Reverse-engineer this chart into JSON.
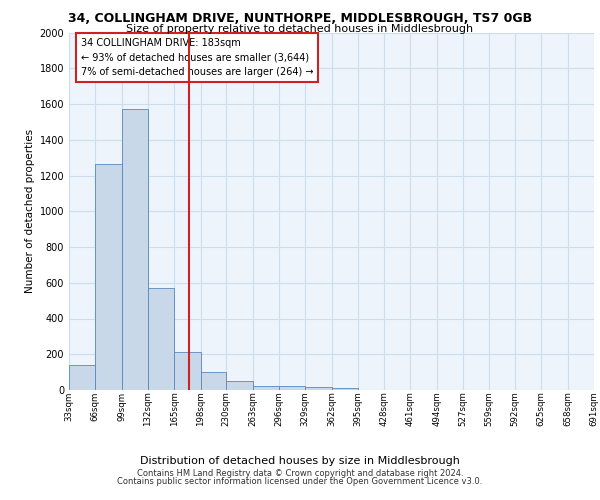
{
  "title": "34, COLLINGHAM DRIVE, NUNTHORPE, MIDDLESBROUGH, TS7 0GB",
  "subtitle": "Size of property relative to detached houses in Middlesbrough",
  "xlabel": "Distribution of detached houses by size in Middlesbrough",
  "ylabel": "Number of detached properties",
  "annotation_line1": "34 COLLINGHAM DRIVE: 183sqm",
  "annotation_line2": "← 93% of detached houses are smaller (3,644)",
  "annotation_line3": "7% of semi-detached houses are larger (264) →",
  "property_size": 183,
  "bin_edges": [
    33,
    66,
    99,
    132,
    165,
    198,
    230,
    263,
    296,
    329,
    362,
    395,
    428,
    461,
    494,
    527,
    559,
    592,
    625,
    658,
    691
  ],
  "bar_heights": [
    140,
    1265,
    1570,
    570,
    215,
    100,
    48,
    25,
    20,
    15,
    12,
    0,
    0,
    0,
    0,
    0,
    0,
    0,
    0,
    0
  ],
  "bar_color": "#c8d8e8",
  "bar_edge_color": "#5588bb",
  "grid_color": "#ccddee",
  "vline_color": "#cc2222",
  "vline_x": 183,
  "ylim": [
    0,
    2000
  ],
  "yticks": [
    0,
    200,
    400,
    600,
    800,
    1000,
    1200,
    1400,
    1600,
    1800,
    2000
  ],
  "footer_line1": "Contains HM Land Registry data © Crown copyright and database right 2024.",
  "footer_line2": "Contains public sector information licensed under the Open Government Licence v3.0.",
  "bg_color": "#eef4fb"
}
